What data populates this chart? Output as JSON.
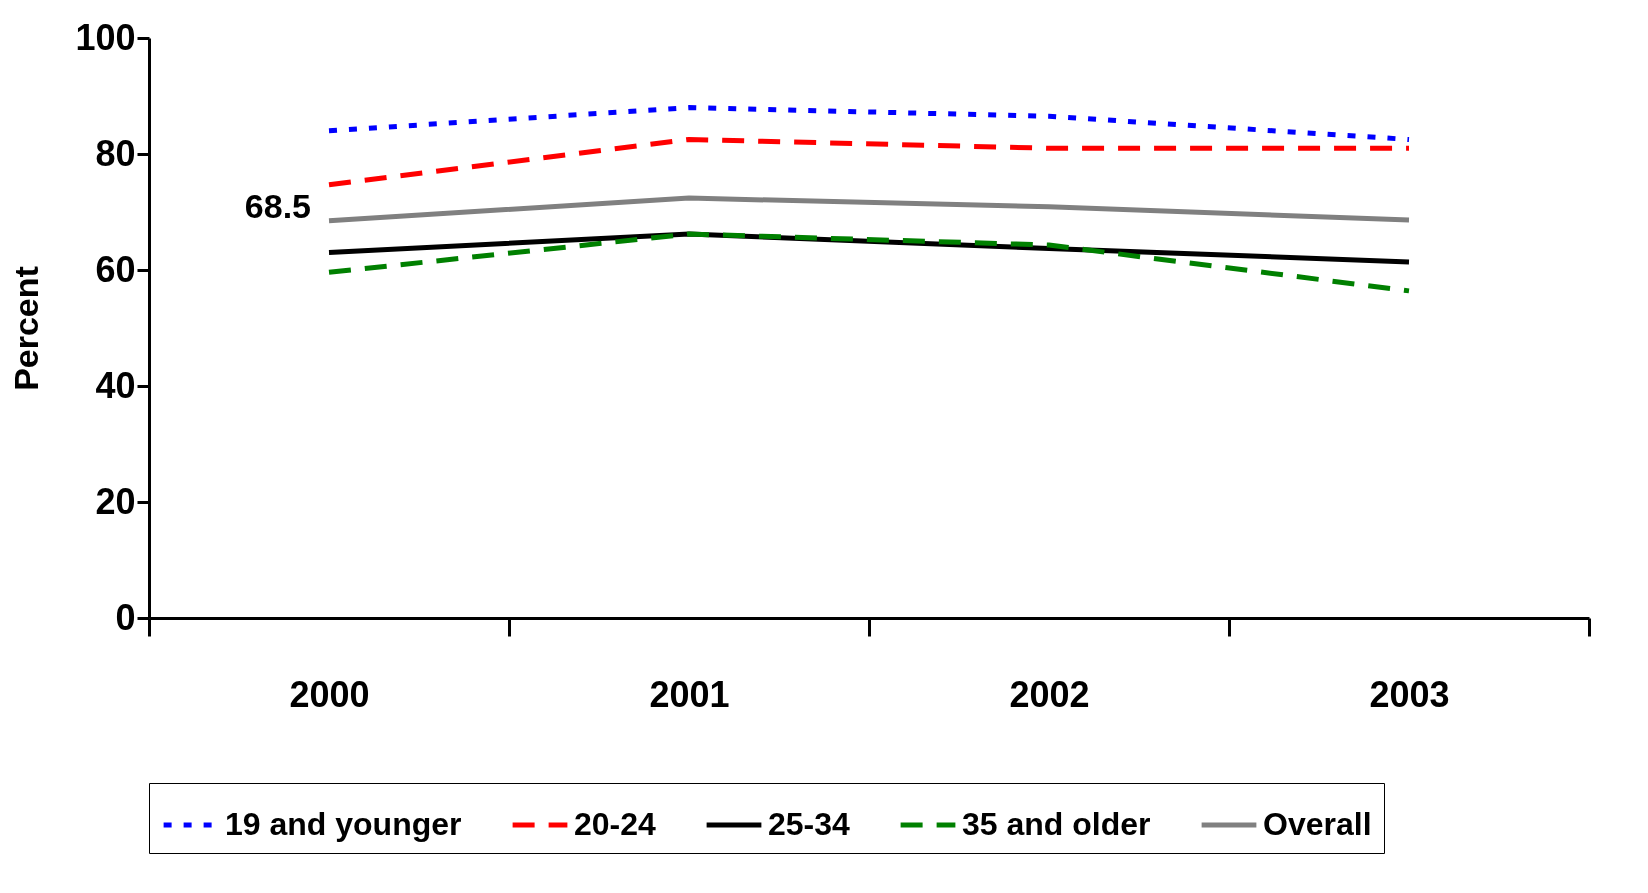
{
  "chart_data": {
    "type": "line",
    "ylabel": "Percent",
    "categories": [
      "2000",
      "2001",
      "2002",
      "2003"
    ],
    "series": [
      {
        "name": "19 and younger",
        "color": "#0000ff",
        "line_style": "dotted",
        "values": [
          84,
          88,
          86.5,
          82.5
        ]
      },
      {
        "name": "20-24",
        "color": "#ff0000",
        "line_style": "dashed",
        "values": [
          74.7,
          82.5,
          81,
          81
        ]
      },
      {
        "name": "25-34",
        "color": "#000000",
        "line_style": "solid",
        "values": [
          63,
          66.2,
          63.7,
          61.4
        ]
      },
      {
        "name": "35 and older",
        "color": "#008000",
        "line_style": "dashed",
        "values": [
          59.6,
          66.2,
          64.3,
          56.4
        ]
      },
      {
        "name": "Overall",
        "color": "#808080",
        "line_style": "solid",
        "values": [
          68.5,
          72.4,
          70.9,
          68.6
        ]
      }
    ],
    "annotations": [
      {
        "text": "68.5",
        "x": "2000",
        "y": 68.5
      }
    ],
    "ylim": [
      0,
      100
    ],
    "yticks": [
      0,
      20,
      40,
      60,
      80,
      100
    ],
    "grid": false,
    "legend": "bottom"
  }
}
